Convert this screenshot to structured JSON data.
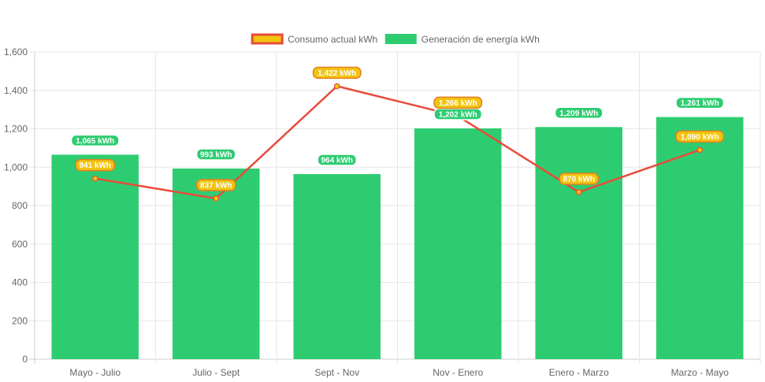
{
  "chart_data": {
    "type": "bar",
    "categories": [
      "Mayo - Julio",
      "Julio - Sept",
      "Sept - Nov",
      "Nov - Enero",
      "Enero - Marzo",
      "Marzo - Mayo"
    ],
    "ylim": [
      0,
      1600
    ],
    "yticks": [
      0,
      200,
      400,
      600,
      800,
      1000,
      1200,
      1400,
      1600
    ],
    "ytick_labels": [
      "0",
      "200",
      "400",
      "600",
      "800",
      "1,000",
      "1,200",
      "1,400",
      "1,600"
    ],
    "grid": true,
    "legend_position": "top",
    "series": [
      {
        "name": "Generación de energía kWh",
        "type": "bar",
        "color": "#2ecc71",
        "values": [
          1065,
          993,
          964,
          1202,
          1209,
          1261
        ],
        "labels": [
          "1,065 kWh",
          "993 kWh",
          "964 kWh",
          "1,202 kWh",
          "1,209 kWh",
          "1,261 kWh"
        ]
      },
      {
        "name": "Consumo actual kWh",
        "type": "line",
        "color": "#e74c3c",
        "fill_color": "#f1c40f",
        "values": [
          941,
          837,
          1422,
          1266,
          870,
          1090
        ],
        "labels": [
          "941 kWh",
          "837 kWh",
          "1,422 kWh",
          "1,266 kWh",
          "870 kWh",
          "1,090 kWh"
        ]
      }
    ]
  }
}
